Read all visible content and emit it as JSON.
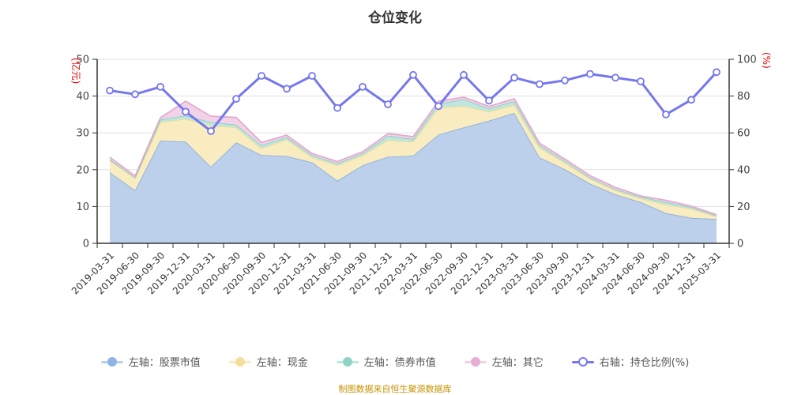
{
  "title": "仓位变化",
  "footer": "制图数据来自恒生聚源数据库",
  "legend": {
    "items": [
      {
        "label": "左轴：股票市值",
        "dot": "#8fb3e2",
        "line": "#bcd0ec",
        "hollow": false
      },
      {
        "label": "左轴：现金",
        "dot": "#f2df9c",
        "line": "#f8ecc0",
        "hollow": false
      },
      {
        "label": "左轴：债券市值",
        "dot": "#8ed3c4",
        "line": "#bfe7de",
        "hollow": false
      },
      {
        "label": "左轴：其它",
        "dot": "#e6aed3",
        "line": "#f1d2e6",
        "hollow": false
      },
      {
        "label": "右轴：持仓比例(%)",
        "dot": "#7577ee",
        "line": "#7577ee",
        "hollow": true
      }
    ]
  },
  "chart_data": {
    "type": "area",
    "subtype": "stacked-areas-with-right-axis-line",
    "title": "仓位变化",
    "grid": true,
    "legend_position": "bottom",
    "categories": [
      "2019-03-31",
      "2019-06-30",
      "2019-09-30",
      "2019-12-31",
      "2020-03-31",
      "2020-06-30",
      "2020-09-30",
      "2020-12-31",
      "2021-03-31",
      "2021-06-30",
      "2021-09-30",
      "2021-12-31",
      "2022-03-31",
      "2022-06-30",
      "2022-09-30",
      "2022-12-31",
      "2023-03-31",
      "2023-06-30",
      "2023-09-30",
      "2023-12-31",
      "2024-03-31",
      "2024-06-30",
      "2024-09-30",
      "2024-12-31",
      "2025-03-31"
    ],
    "left_axis": {
      "label": "(亿元)",
      "label_color": "#e60000",
      "min": 0,
      "max": 50,
      "ticks": [
        0,
        10,
        20,
        30,
        40,
        50
      ]
    },
    "right_axis": {
      "label": "(%)",
      "label_color": "#e60000",
      "min": 0,
      "max": 100,
      "ticks": [
        0,
        20,
        40,
        60,
        80,
        100
      ]
    },
    "series": [
      {
        "name": "左轴：股票市值",
        "axis": "left",
        "type": "area",
        "stack": true,
        "fill": "#bcd0ec",
        "stroke": "#85abd9",
        "values": [
          19.3,
          14.4,
          27.9,
          27.6,
          20.8,
          27.4,
          24.0,
          23.7,
          22.0,
          17.0,
          21.2,
          23.5,
          23.8,
          29.5,
          31.5,
          33.3,
          35.4,
          23.3,
          20.1,
          16.2,
          13.3,
          11.2,
          8.2,
          6.9,
          6.6
        ]
      },
      {
        "name": "左轴：现金",
        "axis": "left",
        "type": "area",
        "stack": true,
        "fill": "#f8ecc0",
        "stroke": "#ecd98e",
        "values": [
          3.2,
          3.3,
          5.0,
          6.2,
          11.2,
          4.1,
          1.8,
          4.5,
          1.4,
          4.2,
          2.7,
          4.5,
          3.8,
          7.3,
          5.8,
          2.5,
          2.2,
          2.7,
          1.8,
          1.3,
          1.1,
          1.0,
          2.3,
          2.5,
          0.7
        ]
      },
      {
        "name": "左轴：债券市值",
        "axis": "left",
        "type": "area",
        "stack": true,
        "fill": "#bfe7de",
        "stroke": "#83cfc0",
        "values": [
          0.3,
          0.2,
          0.7,
          0.9,
          0.9,
          0.7,
          0.8,
          0.6,
          0.5,
          0.5,
          0.5,
          1.2,
          0.7,
          1.1,
          1.8,
          0.8,
          1.0,
          0.6,
          0.5,
          0.4,
          0.3,
          0.4,
          0.7,
          0.4,
          0.2
        ]
      },
      {
        "name": "左轴：其它",
        "axis": "left",
        "type": "area",
        "stack": true,
        "fill": "#f1d2e6",
        "stroke": "#e2a6cc",
        "values": [
          0.6,
          0.4,
          0.5,
          3.9,
          1.6,
          2.0,
          0.8,
          0.6,
          0.5,
          0.5,
          0.5,
          0.6,
          0.7,
          0.7,
          0.6,
          0.6,
          0.7,
          0.6,
          0.5,
          0.5,
          0.5,
          0.3,
          0.5,
          0.3,
          0.3
        ]
      },
      {
        "name": "右轴：持仓比例(%)",
        "axis": "right",
        "type": "line",
        "color": "#7577ee",
        "values": [
          83,
          81,
          85,
          71.5,
          61,
          78.5,
          91,
          84,
          91,
          73.5,
          85,
          75.5,
          91.5,
          74.5,
          91.5,
          77.5,
          90,
          86.5,
          88.5,
          92,
          90,
          88,
          70,
          78,
          93
        ]
      }
    ]
  }
}
